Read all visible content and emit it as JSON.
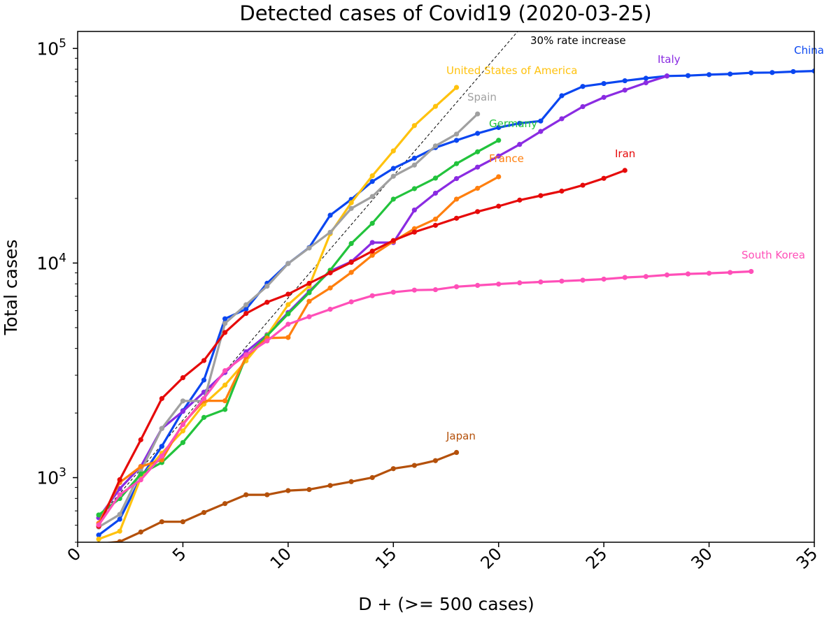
{
  "chart_data": {
    "type": "line",
    "title": "Detected cases of Covid19 (2020-03-25)",
    "xlabel": "D + (>= 500 cases)",
    "ylabel": "Total cases",
    "xlim": [
      0,
      35
    ],
    "ylim": [
      500,
      120000
    ],
    "yscale": "log",
    "grid": false,
    "legend": "none",
    "x_ticks": [
      "0",
      "5",
      "10",
      "15",
      "20",
      "25",
      "30",
      "35"
    ],
    "y_ticks": [
      {
        "value": 1000,
        "base": "10",
        "exp": "3"
      },
      {
        "value": 10000,
        "base": "10",
        "exp": "4"
      },
      {
        "value": 100000,
        "base": "10",
        "exp": "5"
      }
    ],
    "reference_line": {
      "label": "30% rate increase",
      "growth_rate": 1.3,
      "x": [
        1,
        21.3
      ],
      "y": [
        649,
        133000
      ],
      "color": "#000000"
    },
    "series": [
      {
        "name": "China",
        "color": "#0a46f0",
        "x": [
          1,
          2,
          3,
          4,
          5,
          6,
          7,
          8,
          9,
          10,
          11,
          12,
          13,
          14,
          15,
          16,
          17,
          18,
          19,
          20,
          21,
          22,
          23,
          24,
          25,
          26,
          27,
          28,
          29,
          30,
          31,
          32,
          33,
          34,
          35
        ],
        "y": [
          540,
          640,
          1000,
          1400,
          2050,
          2850,
          5500,
          6100,
          8050,
          9950,
          11800,
          16700,
          19800,
          24000,
          27600,
          30800,
          34500,
          37300,
          40200,
          42800,
          44800,
          45900,
          60200,
          66500,
          68600,
          70700,
          72600,
          74400,
          74700,
          75500,
          76000,
          77000,
          77200,
          78000,
          78500
        ]
      },
      {
        "name": "Italy",
        "color": "#8a2be2",
        "x": [
          1,
          2,
          3,
          4,
          5,
          6,
          7,
          8,
          9,
          10,
          11,
          12,
          13,
          14,
          15,
          16,
          17,
          18,
          19,
          20,
          21,
          22,
          23,
          24,
          25,
          26,
          27,
          28
        ],
        "y": [
          650,
          888,
          1128,
          1694,
          2036,
          2502,
          3089,
          3858,
          4636,
          5883,
          7375,
          9172,
          10149,
          12462,
          12462,
          17660,
          21157,
          24747,
          27980,
          31506,
          35713,
          41035,
          47021,
          53578,
          59138,
          63927,
          69176,
          74386
        ]
      },
      {
        "name": "United States of America",
        "color": "#ffc20e",
        "x": [
          1,
          2,
          3,
          4,
          5,
          6,
          7,
          8,
          9,
          10,
          11,
          12,
          13,
          14,
          15,
          16,
          17,
          18
        ],
        "y": [
          517,
          563,
          1000,
          1300,
          1650,
          2200,
          2700,
          3500,
          4600,
          6400,
          7800,
          13700,
          19100,
          25500,
          33300,
          43700,
          53700,
          65800
        ]
      },
      {
        "name": "Spain",
        "color": "#a0a0a0",
        "x": [
          1,
          2,
          3,
          4,
          5,
          6,
          7,
          8,
          9,
          10,
          11,
          12,
          13,
          14,
          15,
          16,
          17,
          18,
          19
        ],
        "y": [
          589,
          674,
          1073,
          1695,
          2277,
          2277,
          5232,
          6391,
          7798,
          9942,
          11748,
          13910,
          17963,
          20410,
          25374,
          28603,
          35136,
          39885,
          49515
        ]
      },
      {
        "name": "Germany",
        "color": "#22c33c",
        "x": [
          1,
          2,
          3,
          4,
          5,
          6,
          7,
          8,
          9,
          10,
          11,
          12,
          13,
          14,
          15,
          16,
          17,
          18,
          19,
          20
        ],
        "y": [
          670,
          799,
          1040,
          1176,
          1457,
          1908,
          2078,
          3675,
          4585,
          5795,
          7272,
          9257,
          12327,
          15320,
          19848,
          22213,
          24873,
          29056,
          32986,
          37323
        ]
      },
      {
        "name": "France",
        "color": "#ff7f0e",
        "x": [
          1,
          2,
          3,
          4,
          5,
          6,
          7,
          8,
          9,
          10,
          11,
          12,
          13,
          14,
          15,
          16,
          17,
          18,
          19,
          20
        ],
        "y": [
          613,
          949,
          1126,
          1209,
          1784,
          2281,
          2281,
          3661,
          4469,
          4499,
          6633,
          7652,
          9043,
          10871,
          12612,
          14459,
          16018,
          19856,
          22304,
          25233
        ]
      },
      {
        "name": "Iran",
        "color": "#e60a0a",
        "x": [
          1,
          2,
          3,
          4,
          5,
          6,
          7,
          8,
          9,
          10,
          11,
          12,
          13,
          14,
          15,
          16,
          17,
          18,
          19,
          20,
          21,
          22,
          23,
          24,
          25,
          26
        ],
        "y": [
          593,
          978,
          1501,
          2336,
          2922,
          3513,
          4747,
          5823,
          6566,
          7161,
          8042,
          9000,
          10075,
          11364,
          12729,
          13938,
          14991,
          16169,
          17361,
          18407,
          19644,
          20610,
          21638,
          23049,
          24811,
          27017
        ]
      },
      {
        "name": "South Korea",
        "color": "#ff4fb8",
        "x": [
          1,
          2,
          3,
          4,
          5,
          6,
          7,
          8,
          9,
          10,
          11,
          12,
          13,
          14,
          15,
          16,
          17,
          18,
          19,
          20,
          21,
          22,
          23,
          24,
          25,
          26,
          27,
          28,
          29,
          30,
          31,
          32
        ],
        "y": [
          602,
          833,
          977,
          1261,
          1766,
          2337,
          3150,
          3736,
          4335,
          5186,
          5621,
          6088,
          6593,
          7041,
          7313,
          7478,
          7513,
          7755,
          7869,
          7979,
          8086,
          8162,
          8236,
          8320,
          8413,
          8565,
          8652,
          8799,
          8897,
          8961,
          9037,
          9137
        ]
      },
      {
        "name": "Japan",
        "color": "#b4500a",
        "x": [
          1,
          2,
          3,
          4,
          5,
          6,
          7,
          8,
          9,
          10,
          11,
          12,
          13,
          14,
          15,
          16,
          17,
          18
        ],
        "y": [
          491,
          503,
          558,
          623,
          623,
          688,
          757,
          832,
          832,
          870,
          880,
          919,
          958,
          1001,
          1101,
          1140,
          1200,
          1310
        ]
      }
    ]
  }
}
